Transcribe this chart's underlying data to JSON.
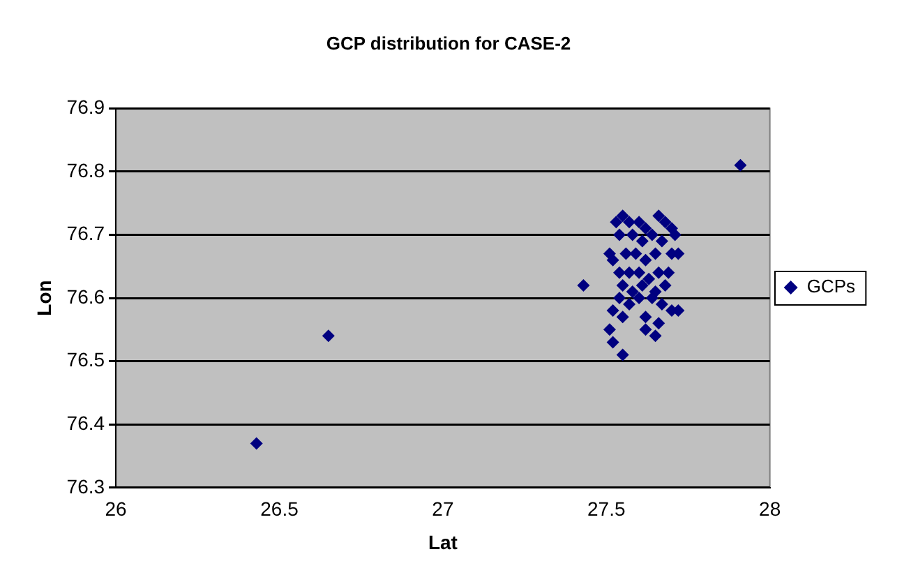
{
  "chart_data": {
    "type": "scatter",
    "title": "GCP distribution for CASE-2",
    "xlabel": "Lat",
    "ylabel": "Lon",
    "xlim": [
      26,
      28
    ],
    "xticks": [
      26,
      26.5,
      27,
      27.5,
      28
    ],
    "ylim": [
      76.3,
      76.9
    ],
    "yticks": [
      76.3,
      76.4,
      76.5,
      76.6,
      76.7,
      76.8,
      76.9
    ],
    "grid": "y",
    "legend": "right",
    "marker": "diamond",
    "series": [
      {
        "name": "GCPs",
        "color": "#000080",
        "x": [
          26.43,
          26.65,
          27.43,
          27.91,
          27.53,
          27.55,
          27.57,
          27.6,
          27.62,
          27.66,
          27.68,
          27.7,
          27.54,
          27.58,
          27.61,
          27.64,
          27.67,
          27.71,
          27.51,
          27.52,
          27.56,
          27.59,
          27.62,
          27.65,
          27.7,
          27.72,
          27.54,
          27.57,
          27.6,
          27.63,
          27.66,
          27.69,
          27.55,
          27.58,
          27.61,
          27.65,
          27.68,
          27.54,
          27.57,
          27.6,
          27.64,
          27.67,
          27.7,
          27.72,
          27.52,
          27.55,
          27.62,
          27.66,
          27.51,
          27.62,
          27.65,
          27.52,
          27.55
        ],
        "values": [
          76.37,
          76.54,
          76.62,
          76.81,
          76.72,
          76.73,
          76.72,
          76.72,
          76.71,
          76.73,
          76.72,
          76.71,
          76.7,
          76.7,
          76.69,
          76.7,
          76.69,
          76.7,
          76.67,
          76.66,
          76.67,
          76.67,
          76.66,
          76.67,
          76.67,
          76.67,
          76.64,
          76.64,
          76.64,
          76.63,
          76.64,
          76.64,
          76.62,
          76.61,
          76.62,
          76.61,
          76.62,
          76.6,
          76.59,
          76.6,
          76.6,
          76.59,
          76.58,
          76.58,
          76.58,
          76.57,
          76.57,
          76.56,
          76.55,
          76.55,
          76.54,
          76.53,
          76.51
        ]
      }
    ]
  }
}
